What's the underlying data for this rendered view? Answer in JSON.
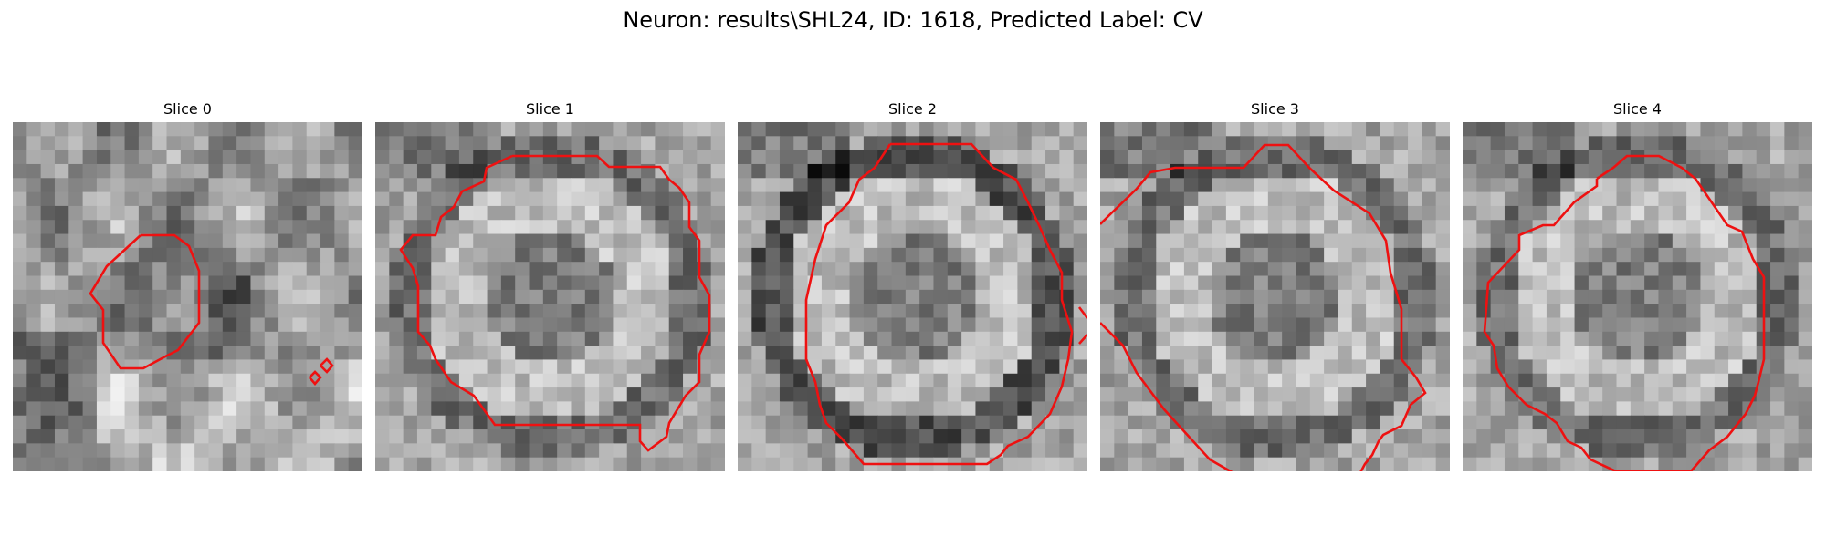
{
  "figure": {
    "title": "Neuron: results\\SHL24, ID: 1618, Predicted Label: CV"
  },
  "contour_color": "#ee1111",
  "slices": [
    {
      "title": "Slice 0",
      "seed": 11,
      "pattern": "small-cell"
    },
    {
      "title": "Slice 1",
      "seed": 23,
      "pattern": "ring"
    },
    {
      "title": "Slice 2",
      "seed": 37,
      "pattern": "ring-dark"
    },
    {
      "title": "Slice 3",
      "seed": 41,
      "pattern": "ring"
    },
    {
      "title": "Slice 4",
      "seed": 53,
      "pattern": "ring"
    }
  ]
}
